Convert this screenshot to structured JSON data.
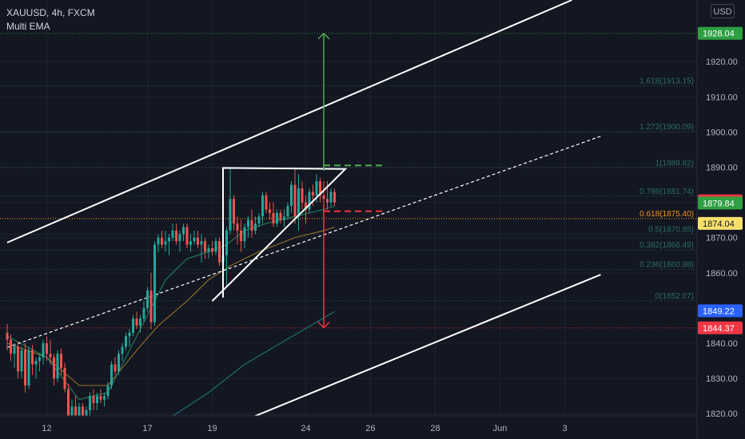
{
  "header": {
    "symbol_line": "XAUUSD, 4h, FXCM",
    "indicator_label": "Multi EMA",
    "currency_button": "USD"
  },
  "colors": {
    "background": "#131722",
    "grid": "#1e222d",
    "up_candle": "#26a69a",
    "down_candle": "#ef5350",
    "channel_line": "#ffffff",
    "fib_text": "#2a6b66",
    "ema_fast": "#1f7a5c",
    "ema_mid": "#8a6a2a",
    "ema_slow": "#1d6f70",
    "target_up": "#4caf50",
    "target_down": "#f23645",
    "tag_green": "#2ea043",
    "tag_red": "#f23645",
    "tag_yellow": "#f7e06a",
    "tag_blue": "#2962ff",
    "tag_orange": "#f7931a"
  },
  "chart_data": {
    "type": "candlestick",
    "symbol": "XAUUSD",
    "timeframe": "4h",
    "y_axis": {
      "ticks": [
        1820,
        1830,
        1840,
        1850,
        1860,
        1870,
        1880,
        1890,
        1900,
        1910,
        1920
      ],
      "tick_labels": [
        "1820.00",
        "1830.00",
        "1840.00",
        "1850.00",
        "1860.00",
        "1870.00",
        "1880.00",
        "1890.00",
        "1900.00",
        "1910.00",
        "1920.00"
      ],
      "ylim": [
        1812.8,
        1937.5
      ]
    },
    "x_axis": {
      "tick_labels": [
        "12",
        "17",
        "19",
        "24",
        "26",
        "28",
        "Jun",
        "3"
      ],
      "tick_bar_index": [
        11,
        39,
        57,
        83,
        101,
        119,
        137,
        155
      ]
    },
    "price_tags": [
      {
        "label": "1928.04",
        "value": 1928.04,
        "style": "green"
      },
      {
        "label": "1880.44",
        "value": 1880.44,
        "style": "red"
      },
      {
        "label": "1879.84",
        "value": 1879.84,
        "style": "green"
      },
      {
        "label": "1874.04",
        "value": 1874.04,
        "style": "yellow"
      },
      {
        "label": "1849.22",
        "value": 1849.22,
        "style": "blue"
      },
      {
        "label": "1844.37",
        "value": 1844.37,
        "style": "red"
      }
    ],
    "fib_levels": [
      {
        "label": "1.618(1913.15)",
        "value": 1913.15
      },
      {
        "label": "1.272(1900.09)",
        "value": 1900.09
      },
      {
        "label": "1(1889.82)",
        "value": 1889.82
      },
      {
        "label": "0.786(1881.74)",
        "value": 1881.74
      },
      {
        "label": "0.618(1875.40)",
        "value": 1875.4
      },
      {
        "label": "0.5(1870.95)",
        "value": 1870.95
      },
      {
        "label": "0.382(1866.49)",
        "value": 1866.49
      },
      {
        "label": "0.236(1860.98)",
        "value": 1860.98
      },
      {
        "label": "0(1852.07)",
        "value": 1852.07
      }
    ],
    "candles": [
      [
        1843,
        1845.5,
        1838,
        1841
      ],
      [
        1841,
        1842.5,
        1835,
        1837
      ],
      [
        1837,
        1840,
        1833,
        1839
      ],
      [
        1839,
        1840.5,
        1830,
        1832
      ],
      [
        1832,
        1839,
        1830,
        1838
      ],
      [
        1838,
        1840,
        1826,
        1828
      ],
      [
        1828,
        1839,
        1827,
        1838
      ],
      [
        1838,
        1839.5,
        1831,
        1834
      ],
      [
        1834,
        1836,
        1830,
        1835
      ],
      [
        1835,
        1837,
        1832,
        1836
      ],
      [
        1836,
        1841,
        1834,
        1840
      ],
      [
        1840,
        1842,
        1835,
        1837
      ],
      [
        1837,
        1841,
        1834,
        1836
      ],
      [
        1836,
        1837,
        1828,
        1830
      ],
      [
        1830,
        1838,
        1829,
        1837
      ],
      [
        1837,
        1838.5,
        1831,
        1833
      ],
      [
        1833,
        1834.5,
        1826,
        1827
      ],
      [
        1827,
        1828.5,
        1816,
        1818
      ],
      [
        1818,
        1824,
        1815,
        1822
      ],
      [
        1822,
        1825,
        1815,
        1817
      ],
      [
        1817,
        1823,
        1816,
        1822
      ],
      [
        1822,
        1823,
        1815,
        1819
      ],
      [
        1819,
        1822,
        1816,
        1821
      ],
      [
        1821,
        1826,
        1819,
        1825
      ],
      [
        1825,
        1827,
        1821,
        1823
      ],
      [
        1823,
        1826,
        1821,
        1825
      ],
      [
        1825,
        1827,
        1823,
        1824
      ],
      [
        1824,
        1826,
        1822,
        1825
      ],
      [
        1825,
        1829,
        1824,
        1828
      ],
      [
        1828,
        1835,
        1827,
        1834
      ],
      [
        1834,
        1836,
        1831,
        1832
      ],
      [
        1832,
        1838,
        1831,
        1837
      ],
      [
        1837,
        1840,
        1835,
        1839
      ],
      [
        1839,
        1843,
        1838,
        1842
      ],
      [
        1842,
        1844,
        1839,
        1843
      ],
      [
        1843,
        1848,
        1842,
        1847
      ],
      [
        1847,
        1849,
        1844,
        1845
      ],
      [
        1845,
        1848,
        1843,
        1847
      ],
      [
        1847,
        1852,
        1846,
        1850
      ],
      [
        1850,
        1856,
        1849,
        1855
      ],
      [
        1855,
        1860,
        1844,
        1846
      ],
      [
        1846,
        1869,
        1845,
        1868
      ],
      [
        1868,
        1871,
        1866,
        1870
      ],
      [
        1870,
        1872,
        1867,
        1868
      ],
      [
        1868,
        1872,
        1866,
        1869
      ],
      [
        1869,
        1871,
        1865,
        1870
      ],
      [
        1870,
        1874,
        1869,
        1872
      ],
      [
        1872,
        1874,
        1868,
        1869
      ],
      [
        1869,
        1872,
        1866,
        1871
      ],
      [
        1871,
        1874,
        1869,
        1873
      ],
      [
        1873,
        1874,
        1867,
        1868
      ],
      [
        1868,
        1871,
        1866,
        1869
      ],
      [
        1869,
        1872,
        1868,
        1870
      ],
      [
        1870,
        1872,
        1867,
        1868
      ],
      [
        1868,
        1871,
        1863,
        1869
      ],
      [
        1869,
        1870,
        1864,
        1866
      ],
      [
        1866,
        1868,
        1864,
        1867
      ],
      [
        1867,
        1869,
        1865,
        1866
      ],
      [
        1866,
        1870,
        1865,
        1869
      ],
      [
        1869,
        1870,
        1862,
        1863
      ],
      [
        1863,
        1871,
        1858,
        1865
      ],
      [
        1865,
        1873,
        1856,
        1872
      ],
      [
        1872,
        1890,
        1871,
        1881
      ],
      [
        1881,
        1882,
        1872,
        1874
      ],
      [
        1874,
        1876,
        1868,
        1872
      ],
      [
        1872,
        1875,
        1866,
        1869
      ],
      [
        1869,
        1874,
        1867,
        1873
      ],
      [
        1873,
        1876,
        1870,
        1875
      ],
      [
        1875,
        1878,
        1870,
        1872
      ],
      [
        1872,
        1876,
        1871,
        1874
      ],
      [
        1874,
        1877,
        1873,
        1876
      ],
      [
        1876,
        1883,
        1874,
        1882
      ],
      [
        1882,
        1883,
        1877,
        1878
      ],
      [
        1878,
        1880,
        1875,
        1877
      ],
      [
        1877,
        1880,
        1873,
        1874
      ],
      [
        1874,
        1878,
        1873,
        1877
      ],
      [
        1877,
        1878,
        1874,
        1875
      ],
      [
        1875,
        1878,
        1873,
        1876
      ],
      [
        1876,
        1880,
        1875,
        1879
      ],
      [
        1879,
        1886,
        1877,
        1885
      ],
      [
        1885,
        1890,
        1874,
        1876
      ],
      [
        1876,
        1888,
        1872,
        1884
      ],
      [
        1884,
        1886,
        1878,
        1880
      ],
      [
        1880,
        1882,
        1874,
        1878
      ],
      [
        1878,
        1884,
        1877,
        1883
      ],
      [
        1883,
        1885,
        1879,
        1882
      ],
      [
        1882,
        1888,
        1880,
        1886
      ],
      [
        1886,
        1887,
        1880,
        1882
      ],
      [
        1882,
        1886,
        1879,
        1881
      ],
      [
        1881,
        1886,
        1878,
        1880
      ],
      [
        1880,
        1884,
        1879,
        1883
      ],
      [
        1883,
        1884,
        1879,
        1880
      ]
    ],
    "ema_fast": [
      [
        0,
        1842
      ],
      [
        11,
        1836
      ],
      [
        20,
        1824
      ],
      [
        28,
        1826
      ],
      [
        36,
        1842
      ],
      [
        40,
        1850
      ],
      [
        44,
        1858
      ],
      [
        50,
        1864
      ],
      [
        56,
        1866
      ],
      [
        61,
        1868
      ],
      [
        66,
        1872
      ],
      [
        72,
        1874
      ],
      [
        80,
        1876
      ],
      [
        88,
        1878
      ],
      [
        91,
        1879
      ]
    ],
    "ema_mid": [
      [
        0,
        1840
      ],
      [
        11,
        1836
      ],
      [
        20,
        1828
      ],
      [
        28,
        1828
      ],
      [
        36,
        1838
      ],
      [
        42,
        1845
      ],
      [
        50,
        1852
      ],
      [
        56,
        1858
      ],
      [
        62,
        1862
      ],
      [
        70,
        1866
      ],
      [
        80,
        1870
      ],
      [
        88,
        1872
      ],
      [
        91,
        1873
      ]
    ],
    "ema_slow": [
      [
        35,
        1812
      ],
      [
        44,
        1818
      ],
      [
        56,
        1826
      ],
      [
        66,
        1834
      ],
      [
        76,
        1840
      ],
      [
        86,
        1846
      ],
      [
        91,
        1849
      ]
    ],
    "annotations": {
      "channel_lines": [
        {
          "x": [
            0,
            157
          ],
          "y": [
            1868.6,
            1937.5
          ]
        },
        {
          "x": [
            0,
            165
          ],
          "y": [
            1838.8,
            1898.8
          ]
        },
        {
          "x": [
            55,
            165
          ],
          "y": [
            1813.5,
            1859.5
          ]
        }
      ],
      "triangle": [
        [
          60,
          1889.8
        ],
        [
          60,
          1889.8,
          true
        ],
        [
          94,
          1889.5
        ],
        [
          57,
          1852
        ]
      ],
      "target_up": {
        "x": 88,
        "from": 1889.0,
        "to": 1928.0,
        "ref_y": 1890.5,
        "ref_x": [
          88,
          105
        ]
      },
      "target_down": {
        "x": 88,
        "from": 1879.5,
        "to": 1844.4,
        "ref_y": 1877.5,
        "ref_x": [
          88,
          105
        ]
      },
      "orange_level": 1875.4,
      "red_level": 1844.37,
      "green_level": 1928.04
    }
  }
}
